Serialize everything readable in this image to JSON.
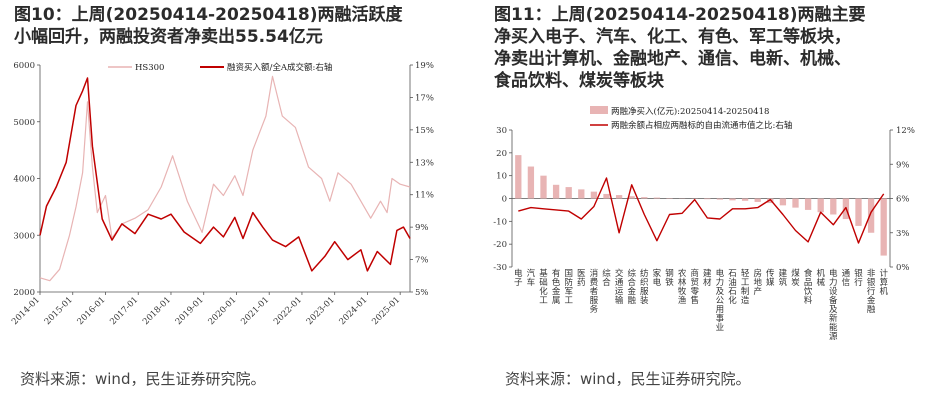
{
  "left": {
    "title_line1": "图10：上周(20250414-20250418)两融活跃度",
    "title_line2": "小幅回升，两融投资者净卖出55.54亿元",
    "source": "资料来源：wind，民生证券研究院。",
    "colors": {
      "hs300": "#e8b4b4",
      "ratio": "#c00000",
      "axis": "#555555"
    }
  },
  "right": {
    "title_lines": [
      "图11：上周(20250414-20250418)两融主要",
      "净买入电子、汽车、化工、有色、军工等板块，",
      "净卖出计算机、金融地产、通信、电新、机械、",
      "食品饮料、煤炭等板块"
    ],
    "source": "资料来源：wind，民生证券研究院。",
    "colors": {
      "bar": "#e8b4b4",
      "line": "#c00000",
      "axis": "#555555"
    }
  },
  "chart_data": [
    {
      "type": "line",
      "title": "",
      "legend": [
        "HS300",
        "融资买入额/全A成交额:右轴"
      ],
      "legend_position": "top",
      "x_ticks": [
        "2014-01",
        "2015-01",
        "2016-01",
        "2017-01",
        "2018-01",
        "2019-01",
        "2020-01",
        "2021-01",
        "2022-01",
        "2023-01",
        "2024-01",
        "2025-01"
      ],
      "y_left": {
        "ticks": [
          2000,
          3000,
          4000,
          5000,
          6000
        ],
        "lim": [
          2000,
          6000
        ]
      },
      "y_right": {
        "ticks": [
          "5%",
          "7%",
          "9%",
          "11%",
          "13%",
          "15%",
          "17%",
          "19%"
        ],
        "lim": [
          5,
          19
        ]
      },
      "series": [
        {
          "name": "HS300",
          "axis": "left",
          "color": "#e8b4b4",
          "x": [
            2014.0,
            2014.3,
            2014.6,
            2014.9,
            2015.1,
            2015.3,
            2015.45,
            2015.6,
            2015.75,
            2016.0,
            2016.2,
            2016.5,
            2016.9,
            2017.3,
            2017.7,
            2018.05,
            2018.5,
            2018.95,
            2019.3,
            2019.6,
            2019.95,
            2020.2,
            2020.5,
            2020.9,
            2021.1,
            2021.4,
            2021.8,
            2022.2,
            2022.6,
            2022.85,
            2023.1,
            2023.5,
            2023.9,
            2024.1,
            2024.4,
            2024.6,
            2024.75,
            2025.0,
            2025.3
          ],
          "values": [
            2250,
            2200,
            2400,
            3000,
            3500,
            4100,
            5350,
            4200,
            3400,
            3700,
            2950,
            3200,
            3300,
            3450,
            3850,
            4400,
            3600,
            3050,
            3900,
            3700,
            4050,
            3700,
            4500,
            5100,
            5800,
            5100,
            4900,
            4200,
            4000,
            3600,
            4100,
            3900,
            3500,
            3300,
            3600,
            3400,
            4000,
            3900,
            3850
          ]
        },
        {
          "name": "融资买入额/全A成交额:右轴",
          "axis": "right",
          "color": "#c00000",
          "x": [
            2014.0,
            2014.2,
            2014.5,
            2014.8,
            2015.1,
            2015.3,
            2015.45,
            2015.6,
            2015.9,
            2016.2,
            2016.5,
            2016.9,
            2017.3,
            2017.7,
            2018.0,
            2018.4,
            2018.9,
            2019.3,
            2019.6,
            2019.95,
            2020.2,
            2020.5,
            2020.8,
            2021.1,
            2021.5,
            2021.9,
            2022.3,
            2022.7,
            2023.0,
            2023.4,
            2023.8,
            2024.0,
            2024.3,
            2024.7,
            2024.9,
            2025.1,
            2025.3
          ],
          "values": [
            8.5,
            10.3,
            11.5,
            13.0,
            16.5,
            17.4,
            18.2,
            14.0,
            9.5,
            8.2,
            9.2,
            8.6,
            9.8,
            9.5,
            9.8,
            8.7,
            8.0,
            9.0,
            8.4,
            9.6,
            8.3,
            9.9,
            9.0,
            8.2,
            7.8,
            8.4,
            6.3,
            7.2,
            8.1,
            7.0,
            7.6,
            6.3,
            7.5,
            6.7,
            8.8,
            9.0,
            8.3
          ]
        }
      ]
    },
    {
      "type": "bar",
      "title": "",
      "legend": [
        "两融净买入(亿元):20250414-20250418",
        "两融余额占相应两融标的自由流通市值之比:右轴"
      ],
      "legend_position": "top",
      "categories": [
        "电子",
        "汽车",
        "基础化工",
        "有色金属",
        "国防军工",
        "医药",
        "消费者服务",
        "综合",
        "交通运输",
        "综合金融",
        "纺织服装",
        "家电",
        "钢铁",
        "农林牧渔",
        "商贸零售",
        "建材",
        "电力及公用事业",
        "石油石化",
        "轻工制造",
        "房地产",
        "传媒",
        "建筑",
        "煤炭",
        "食品饮料",
        "机械",
        "电力设备及新能源",
        "通信",
        "银行",
        "非银行金融",
        "计算机"
      ],
      "y_left": {
        "ticks": [
          -30,
          -20,
          -10,
          0,
          10,
          20,
          30
        ],
        "lim": [
          -30,
          30
        ]
      },
      "y_right": {
        "ticks": [
          "0%",
          "3%",
          "6%",
          "9%",
          "12%"
        ],
        "lim": [
          0,
          12
        ]
      },
      "series": [
        {
          "name": "两融净买入(亿元):20250414-20250418",
          "axis": "left",
          "color": "#e8b4b4",
          "values": [
            19,
            14,
            10,
            6,
            5,
            4,
            3,
            2,
            1.5,
            1,
            0.6,
            0.4,
            0.2,
            0.1,
            -0.1,
            -0.3,
            -0.5,
            -0.8,
            -1,
            -1.5,
            -2,
            -3,
            -4,
            -5,
            -6,
            -7,
            -9,
            -12,
            -15,
            -25
          ]
        },
        {
          "name": "两融余额占相应两融标的自由流通市值之比:右轴",
          "axis": "right",
          "color": "#c00000",
          "values": [
            4.9,
            5.2,
            5.1,
            5.0,
            4.9,
            4.2,
            5.3,
            7.8,
            3.0,
            7.2,
            4.6,
            2.3,
            4.6,
            4.7,
            5.9,
            4.3,
            4.2,
            5.1,
            5.1,
            5.2,
            5.9,
            4.6,
            3.2,
            2.2,
            4.8,
            3.7,
            5.2,
            2.1,
            4.8,
            6.4
          ]
        }
      ]
    }
  ]
}
